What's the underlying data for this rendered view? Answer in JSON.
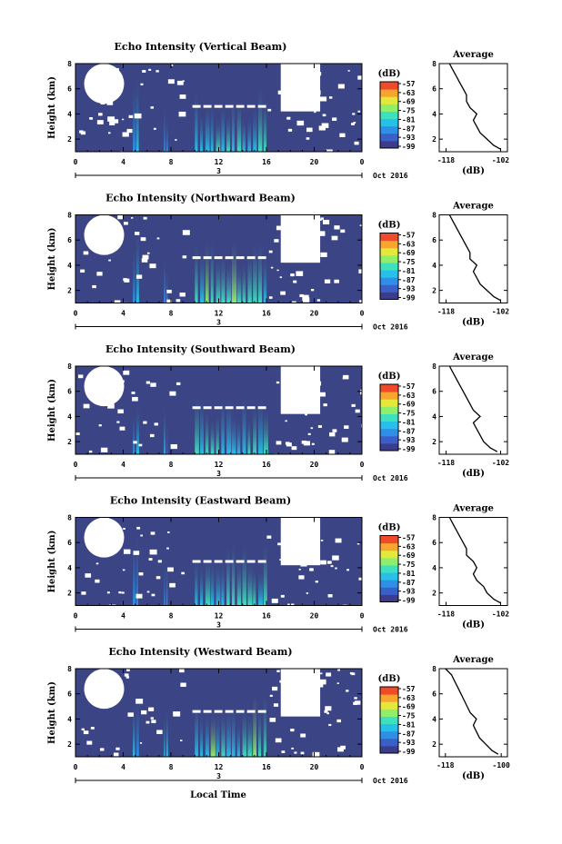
{
  "chart_data": [
    {
      "type": "heatmap",
      "title": "Echo Intensity (Vertical Beam)",
      "ylabel": "Height (km)",
      "x_ticks": [
        "0",
        "4",
        "8",
        "12",
        "16",
        "20",
        "0"
      ],
      "date_marker": "3",
      "date_label": "Oct 2016",
      "y_ticks": [
        "2",
        "4",
        "6",
        "8"
      ],
      "ylim": [
        1,
        8
      ],
      "xlim": [
        0,
        24
      ],
      "colorbar": {
        "unit": "(dB)",
        "ticks": [
          "-57",
          "-63",
          "-69",
          "-75",
          "-81",
          "-87",
          "-93",
          "-99"
        ]
      },
      "average_profile": {
        "title": "Average",
        "xlabel": "(dB)",
        "x_ticks": [
          "-118",
          "-102"
        ],
        "xlim": [
          -120,
          -100
        ],
        "y_ticks": [
          "2",
          "4",
          "6",
          "8"
        ],
        "heights": [
          1.2,
          1.5,
          2.0,
          2.5,
          3.0,
          3.5,
          4.0,
          4.5,
          5.0,
          5.5,
          6.0,
          6.5,
          7.0,
          7.5,
          8.0
        ],
        "values": [
          -102,
          -104,
          -106,
          -108,
          -109,
          -110,
          -109,
          -111,
          -112,
          -112,
          -113,
          -114,
          -115,
          -116,
          -117
        ]
      },
      "bands": [
        {
          "start": 4.8,
          "end": 5.4,
          "top": 7.0,
          "intensity": 0.35
        },
        {
          "start": 7.4,
          "end": 7.8,
          "top": 5.0,
          "intensity": 0.2
        },
        {
          "start": 10.0,
          "end": 16.2,
          "top": 6.0,
          "intensity": 0.55
        }
      ],
      "bright_line": {
        "start": 9.8,
        "end": 16.0,
        "height": 4.6
      }
    },
    {
      "type": "heatmap",
      "title": "Echo Intensity (Northward Beam)",
      "ylabel": "Height (km)",
      "x_ticks": [
        "0",
        "4",
        "8",
        "12",
        "16",
        "20",
        "0"
      ],
      "date_marker": "3",
      "date_label": "Oct 2016",
      "y_ticks": [
        "2",
        "4",
        "6",
        "8"
      ],
      "ylim": [
        1,
        8
      ],
      "xlim": [
        0,
        24
      ],
      "colorbar": {
        "unit": "(dB)",
        "ticks": [
          "-57",
          "-63",
          "-69",
          "-75",
          "-81",
          "-87",
          "-93",
          "-99"
        ]
      },
      "average_profile": {
        "title": "Average",
        "xlabel": "(dB)",
        "x_ticks": [
          "-118",
          "-102"
        ],
        "xlim": [
          -120,
          -100
        ],
        "y_ticks": [
          "2",
          "4",
          "6",
          "8"
        ],
        "heights": [
          1.2,
          1.5,
          2.0,
          2.5,
          3.0,
          3.5,
          4.0,
          4.5,
          5.0,
          5.5,
          6.0,
          6.5,
          7.0,
          7.5,
          8.0
        ],
        "values": [
          -102,
          -104,
          -106,
          -108,
          -109,
          -110,
          -109,
          -111,
          -111,
          -112,
          -113,
          -114,
          -115,
          -116,
          -117
        ]
      },
      "bands": [
        {
          "start": 4.8,
          "end": 5.4,
          "top": 7.0,
          "intensity": 0.35
        },
        {
          "start": 7.4,
          "end": 7.8,
          "top": 5.0,
          "intensity": 0.2
        },
        {
          "start": 10.0,
          "end": 16.2,
          "top": 6.0,
          "intensity": 0.55
        }
      ],
      "bright_line": {
        "start": 9.8,
        "end": 16.0,
        "height": 4.6
      }
    },
    {
      "type": "heatmap",
      "title": "Echo Intensity (Southward Beam)",
      "ylabel": "Height (km)",
      "x_ticks": [
        "0",
        "4",
        "8",
        "12",
        "16",
        "20",
        "0"
      ],
      "date_marker": "3",
      "date_label": "Oct 2016",
      "y_ticks": [
        "2",
        "4",
        "6",
        "8"
      ],
      "ylim": [
        1,
        8
      ],
      "xlim": [
        0,
        24
      ],
      "colorbar": {
        "unit": "(dB)",
        "ticks": [
          "-57",
          "-63",
          "-69",
          "-75",
          "-81",
          "-87",
          "-93",
          "-99"
        ]
      },
      "average_profile": {
        "title": "Average",
        "xlabel": "(dB)",
        "x_ticks": [
          "-118",
          "-102"
        ],
        "xlim": [
          -120,
          -100
        ],
        "y_ticks": [
          "2",
          "4",
          "6",
          "8"
        ],
        "heights": [
          1.2,
          1.5,
          2.0,
          2.5,
          3.0,
          3.5,
          4.0,
          4.5,
          5.0,
          5.5,
          6.0,
          6.5,
          7.0,
          7.5,
          8.0
        ],
        "values": [
          -103,
          -105,
          -107,
          -108,
          -109,
          -110,
          -108,
          -110,
          -111,
          -112,
          -113,
          -114,
          -115,
          -116,
          -117
        ]
      },
      "bands": [
        {
          "start": 4.8,
          "end": 5.4,
          "top": 7.0,
          "intensity": 0.3
        },
        {
          "start": 7.4,
          "end": 7.8,
          "top": 5.0,
          "intensity": 0.2
        },
        {
          "start": 10.0,
          "end": 16.2,
          "top": 6.0,
          "intensity": 0.5
        }
      ],
      "bright_line": {
        "start": 9.8,
        "end": 16.0,
        "height": 4.7
      }
    },
    {
      "type": "heatmap",
      "title": "Echo Intensity (Eastward Beam)",
      "ylabel": "Height (km)",
      "x_ticks": [
        "0",
        "4",
        "8",
        "12",
        "16",
        "20",
        "0"
      ],
      "date_marker": "3",
      "date_label": "Oct 2016",
      "y_ticks": [
        "2",
        "4",
        "6",
        "8"
      ],
      "ylim": [
        1,
        8
      ],
      "xlim": [
        0,
        24
      ],
      "colorbar": {
        "unit": "(dB)",
        "ticks": [
          "-57",
          "-63",
          "-69",
          "-75",
          "-81",
          "-87",
          "-93",
          "-99"
        ]
      },
      "average_profile": {
        "title": "Average",
        "xlabel": "(dB)",
        "x_ticks": [
          "-118",
          "-102"
        ],
        "xlim": [
          -120,
          -100
        ],
        "y_ticks": [
          "2",
          "4",
          "6",
          "8"
        ],
        "heights": [
          1.2,
          1.5,
          2.0,
          2.5,
          3.0,
          3.5,
          4.0,
          4.5,
          5.0,
          5.5,
          6.0,
          6.5,
          7.0,
          7.5,
          8.0
        ],
        "values": [
          -102,
          -104,
          -106,
          -107,
          -109,
          -110,
          -109,
          -110,
          -112,
          -112,
          -113,
          -114,
          -115,
          -116,
          -117
        ]
      },
      "bands": [
        {
          "start": 4.8,
          "end": 5.4,
          "top": 7.0,
          "intensity": 0.35
        },
        {
          "start": 7.4,
          "end": 7.8,
          "top": 5.0,
          "intensity": 0.2
        },
        {
          "start": 10.0,
          "end": 16.2,
          "top": 6.0,
          "intensity": 0.55
        }
      ],
      "bright_line": {
        "start": 9.8,
        "end": 16.0,
        "height": 4.5
      }
    },
    {
      "type": "heatmap",
      "title": "Echo Intensity (Westward Beam)",
      "ylabel": "Height (km)",
      "x_ticks": [
        "0",
        "4",
        "8",
        "12",
        "16",
        "20",
        "0"
      ],
      "date_marker": "3",
      "date_label": "Oct 2016",
      "y_ticks": [
        "2",
        "4",
        "6",
        "8"
      ],
      "ylim": [
        1,
        8
      ],
      "xlim": [
        0,
        24
      ],
      "colorbar": {
        "unit": "(dB)",
        "ticks": [
          "-57",
          "-63",
          "-69",
          "-75",
          "-81",
          "-87",
          "-93",
          "-99"
        ]
      },
      "average_profile": {
        "title": "Average",
        "xlabel": "(dB)",
        "x_ticks": [
          "-118",
          "-100"
        ],
        "xlim": [
          -120,
          -98
        ],
        "y_ticks": [
          "2",
          "4",
          "6",
          "8"
        ],
        "heights": [
          1.2,
          1.5,
          2.0,
          2.5,
          3.0,
          3.5,
          4.0,
          4.5,
          5.0,
          5.5,
          6.0,
          6.5,
          7.0,
          7.5,
          8.0
        ],
        "values": [
          -101,
          -103,
          -105,
          -107,
          -108,
          -109,
          -108,
          -110,
          -111,
          -112,
          -113,
          -114,
          -115,
          -116,
          -118
        ]
      },
      "bands": [
        {
          "start": 4.8,
          "end": 5.4,
          "top": 7.0,
          "intensity": 0.35
        },
        {
          "start": 7.4,
          "end": 7.8,
          "top": 5.0,
          "intensity": 0.2
        },
        {
          "start": 10.0,
          "end": 16.2,
          "top": 6.0,
          "intensity": 0.55
        }
      ],
      "bright_line": {
        "start": 9.8,
        "end": 16.0,
        "height": 4.6
      }
    }
  ],
  "footer": {
    "xlabel": "Local Time"
  },
  "colors": {
    "background_field": "#3b4585",
    "missing": "#ffffff",
    "colormap": [
      "#3b3c8c",
      "#3a5fc6",
      "#2f8fe6",
      "#27c0e8",
      "#3fe0c0",
      "#8fef6a",
      "#e3e83a",
      "#f8a530",
      "#ef4b2a"
    ]
  }
}
